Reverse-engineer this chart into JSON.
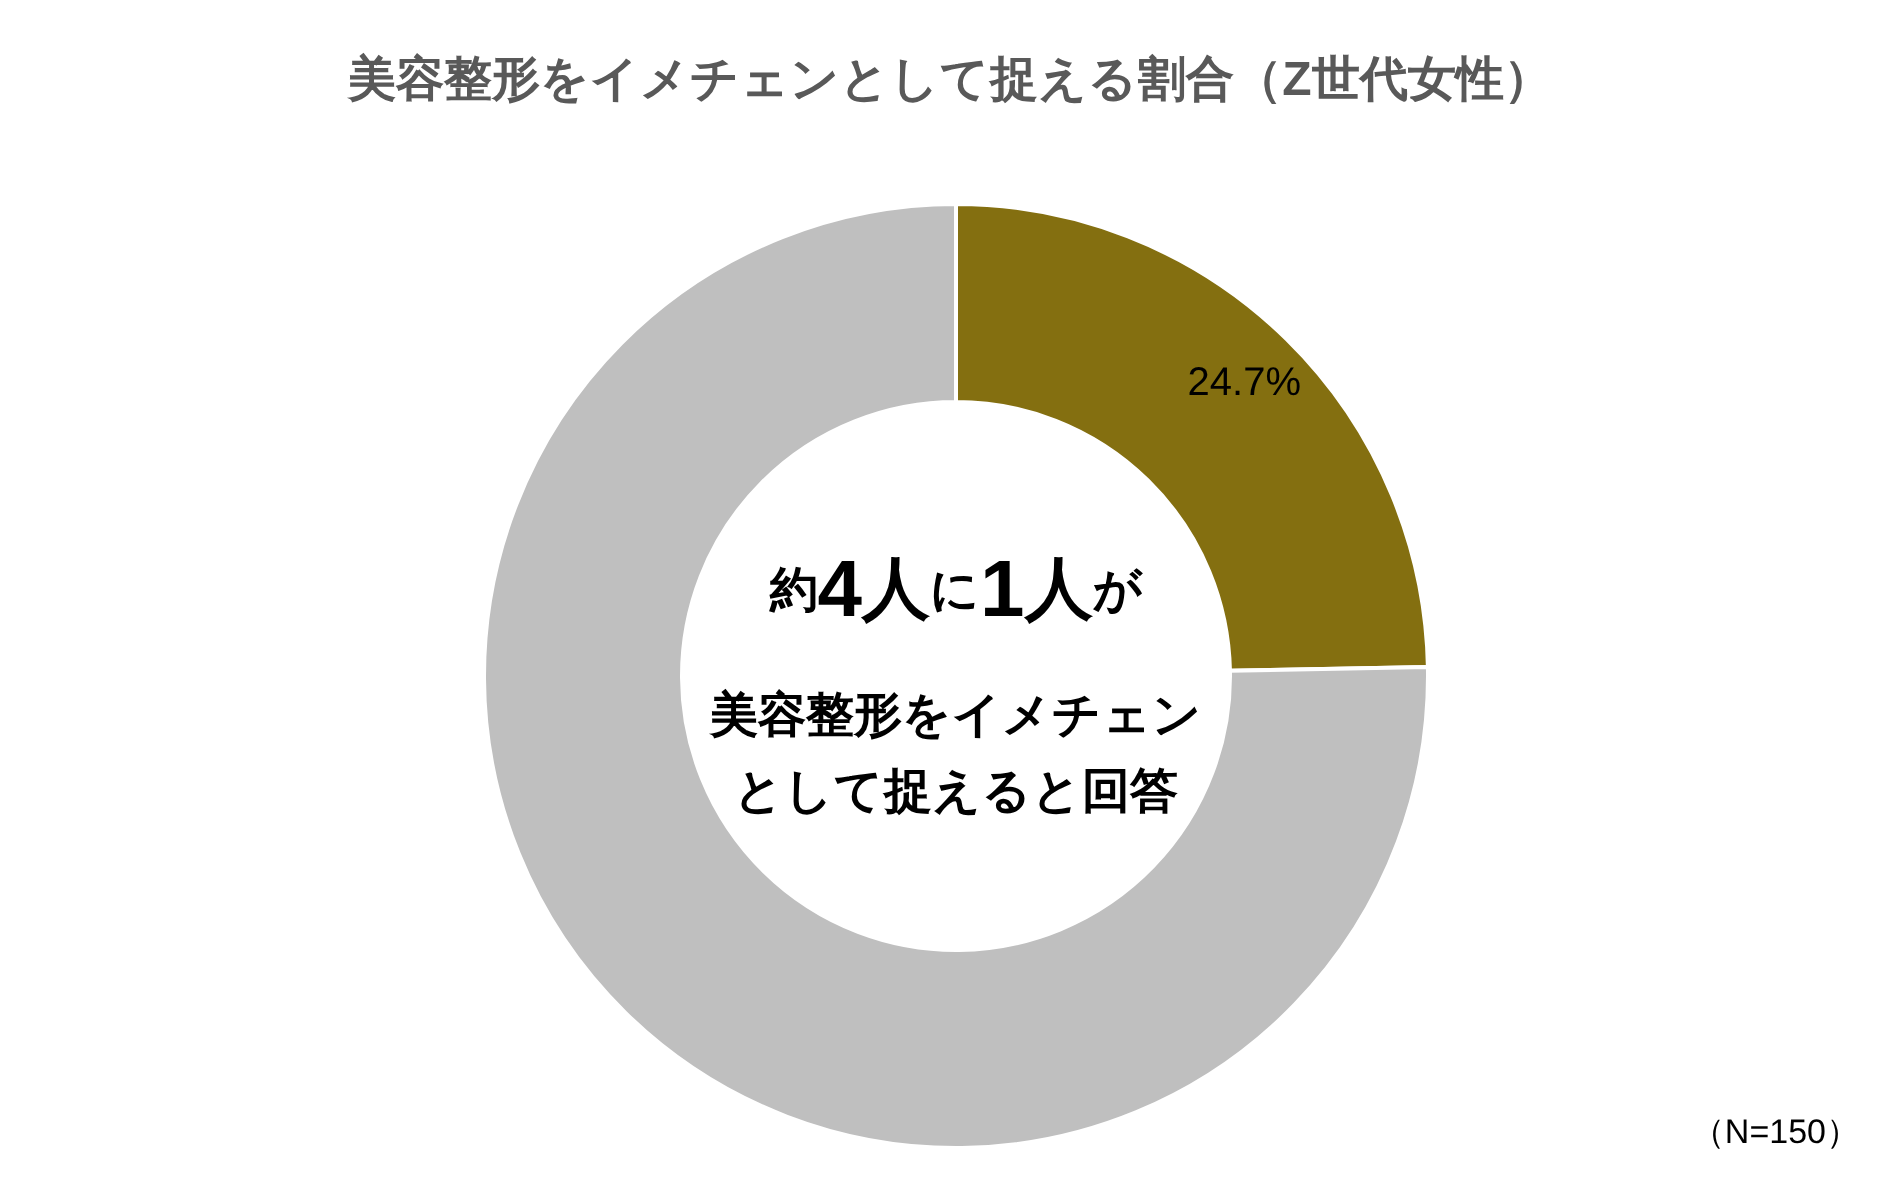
{
  "chart_data": {
    "type": "donut",
    "title": "美容整形をイメチェンとして捉える割合（Z世代女性）",
    "categories": [
      null,
      null
    ],
    "values": [
      24.7,
      75.3
    ],
    "colors": [
      "#846f10",
      "#bfbfbf"
    ],
    "value_labels": [
      "24.7%",
      null
    ],
    "annotations": [
      "約4人に1人が",
      "美容整形をイメチェン",
      "として捉えると回答",
      "（N=150）"
    ]
  }
}
